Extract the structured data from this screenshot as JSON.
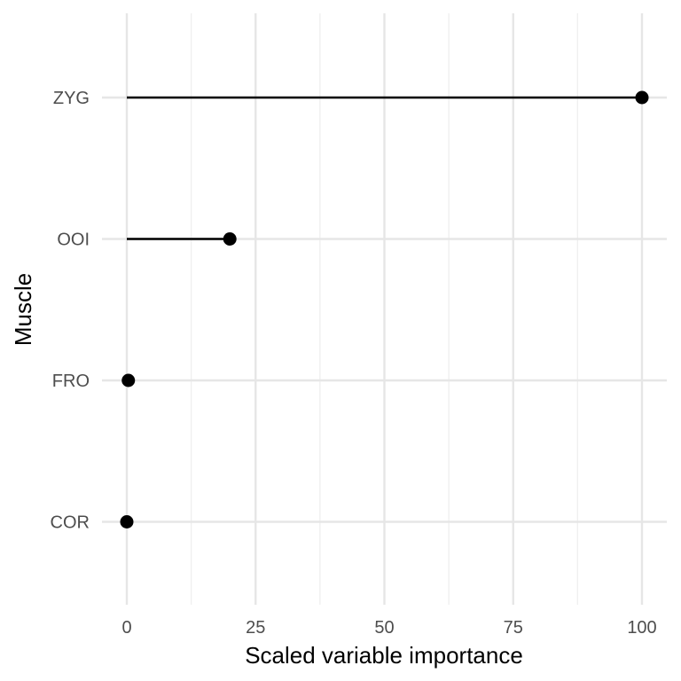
{
  "chart_data": {
    "type": "lollipop",
    "xlabel": "Scaled variable importance",
    "ylabel": "Muscle",
    "xlim": [
      0,
      100
    ],
    "x_ticks": [
      0,
      25,
      50,
      75,
      100
    ],
    "categories": [
      "ZYG",
      "OOI",
      "FRO",
      "COR"
    ],
    "values": [
      100,
      20,
      0.3,
      0
    ],
    "grid": true,
    "legend": "none",
    "colors": {
      "marks": "#000000",
      "grid": "#e6e6e6",
      "text": "#4d4d4d"
    }
  }
}
